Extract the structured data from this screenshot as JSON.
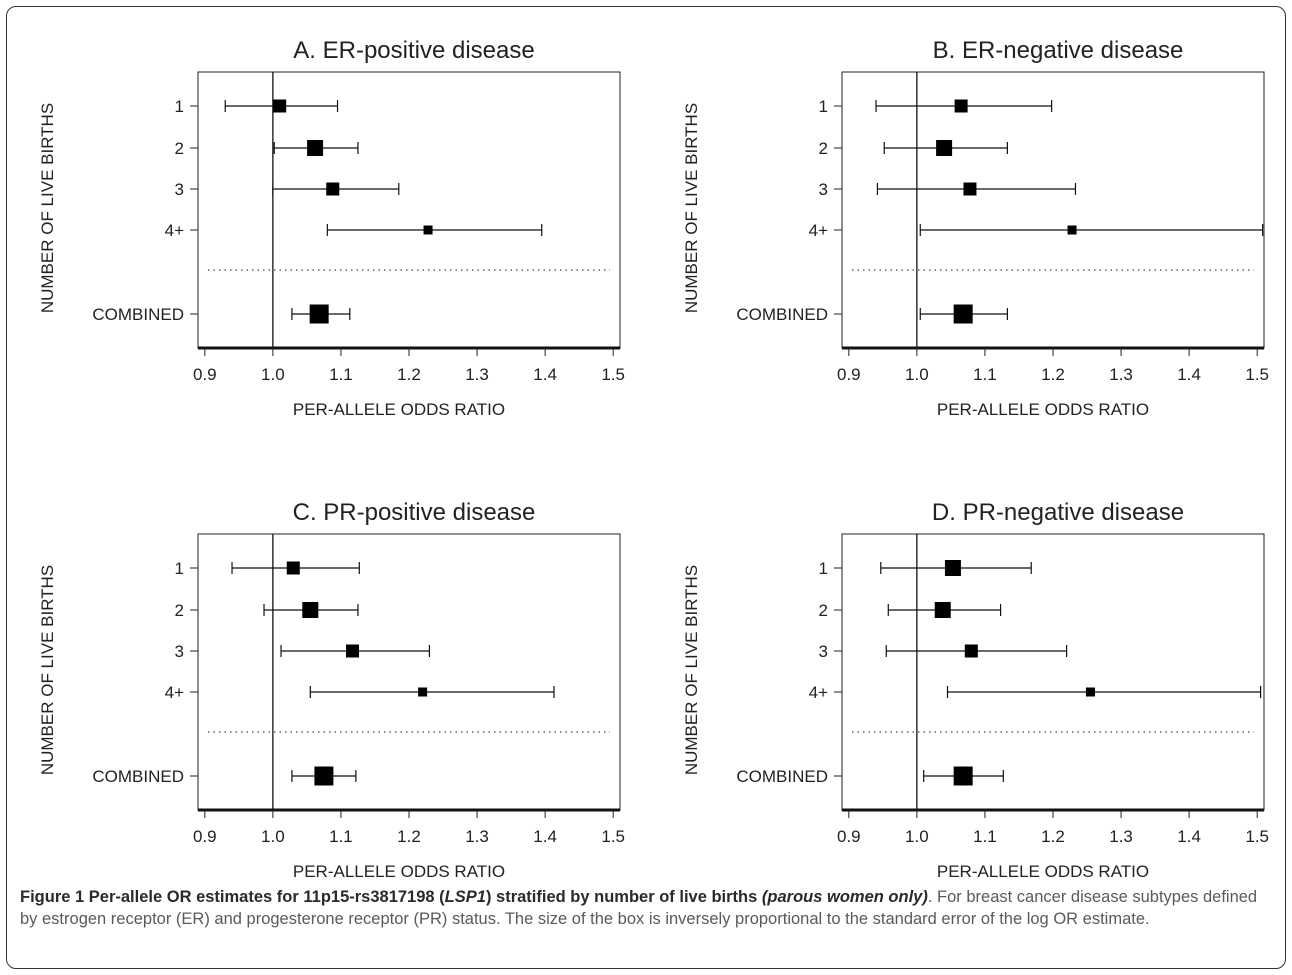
{
  "chart_data": [
    {
      "type": "forest",
      "title": "A. ER-positive disease",
      "xlabel": "PER-ALLELE ODDS RATIO",
      "ylabel": "NUMBER OF LIVE BIRTHS",
      "xlim": [
        0.89,
        1.51
      ],
      "xticks": [
        "0.9",
        "1.0",
        "1.1",
        "1.2",
        "1.3",
        "1.4",
        "1.5"
      ],
      "reference_line": 1.0,
      "rows": [
        {
          "label": "1",
          "or": 1.01,
          "lo": 0.93,
          "hi": 1.095,
          "box": "small"
        },
        {
          "label": "2",
          "or": 1.062,
          "lo": 1.002,
          "hi": 1.125,
          "box": "medium"
        },
        {
          "label": "3",
          "or": 1.088,
          "lo": 1.0,
          "hi": 1.185,
          "box": "small"
        },
        {
          "label": "4+",
          "or": 1.228,
          "lo": 1.08,
          "hi": 1.395,
          "box": "tiny"
        },
        {
          "label": "COMBINED",
          "or": 1.068,
          "lo": 1.028,
          "hi": 1.113,
          "box": "large"
        }
      ]
    },
    {
      "type": "forest",
      "title": "B. ER-negative disease",
      "xlabel": "PER-ALLELE ODDS RATIO",
      "ylabel": "NUMBER OF LIVE BIRTHS",
      "xlim": [
        0.89,
        1.51
      ],
      "xticks": [
        "0.9",
        "1.0",
        "1.1",
        "1.2",
        "1.3",
        "1.4",
        "1.5"
      ],
      "reference_line": 1.0,
      "rows": [
        {
          "label": "1",
          "or": 1.065,
          "lo": 0.94,
          "hi": 1.198,
          "box": "small"
        },
        {
          "label": "2",
          "or": 1.04,
          "lo": 0.952,
          "hi": 1.133,
          "box": "medium"
        },
        {
          "label": "3",
          "or": 1.078,
          "lo": 0.942,
          "hi": 1.233,
          "box": "small"
        },
        {
          "label": "4+",
          "or": 1.228,
          "lo": 1.005,
          "hi": 1.508,
          "box": "tiny"
        },
        {
          "label": "COMBINED",
          "or": 1.068,
          "lo": 1.005,
          "hi": 1.133,
          "box": "large"
        }
      ]
    },
    {
      "type": "forest",
      "title": "C. PR-positive disease",
      "xlabel": "PER-ALLELE ODDS RATIO",
      "ylabel": "NUMBER OF LIVE BIRTHS",
      "xlim": [
        0.89,
        1.51
      ],
      "xticks": [
        "0.9",
        "1.0",
        "1.1",
        "1.2",
        "1.3",
        "1.4",
        "1.5"
      ],
      "reference_line": 1.0,
      "rows": [
        {
          "label": "1",
          "or": 1.03,
          "lo": 0.94,
          "hi": 1.127,
          "box": "small"
        },
        {
          "label": "2",
          "or": 1.055,
          "lo": 0.987,
          "hi": 1.125,
          "box": "medium"
        },
        {
          "label": "3",
          "or": 1.117,
          "lo": 1.012,
          "hi": 1.23,
          "box": "small"
        },
        {
          "label": "4+",
          "or": 1.22,
          "lo": 1.055,
          "hi": 1.413,
          "box": "tiny"
        },
        {
          "label": "COMBINED",
          "or": 1.075,
          "lo": 1.028,
          "hi": 1.122,
          "box": "large"
        }
      ]
    },
    {
      "type": "forest",
      "title": "D. PR-negative disease",
      "xlabel": "PER-ALLELE ODDS RATIO",
      "ylabel": "NUMBER OF LIVE BIRTHS",
      "xlim": [
        0.89,
        1.51
      ],
      "xticks": [
        "0.9",
        "1.0",
        "1.1",
        "1.2",
        "1.3",
        "1.4",
        "1.5"
      ],
      "reference_line": 1.0,
      "rows": [
        {
          "label": "1",
          "or": 1.053,
          "lo": 0.947,
          "hi": 1.168,
          "box": "medium"
        },
        {
          "label": "2",
          "or": 1.038,
          "lo": 0.958,
          "hi": 1.123,
          "box": "medium"
        },
        {
          "label": "3",
          "or": 1.08,
          "lo": 0.955,
          "hi": 1.22,
          "box": "small"
        },
        {
          "label": "4+",
          "or": 1.255,
          "lo": 1.045,
          "hi": 1.505,
          "box": "tiny"
        },
        {
          "label": "COMBINED",
          "or": 1.068,
          "lo": 1.01,
          "hi": 1.127,
          "box": "large"
        }
      ]
    }
  ],
  "caption": {
    "figure_label": "Figure 1",
    "bold_part1": "Per-allele OR estimates for 11p15-rs3817198 (",
    "bold_italic_gene": "LSP1",
    "bold_part2": ") stratified by number of live births ",
    "bold_part3": "(parous women only)",
    "rest": ". For breast cancer disease subtypes defined by estrogen receptor (ER) and progesterone receptor (PR) status. The size of the box is inversely proportional to the standard error of the log OR estimate."
  }
}
